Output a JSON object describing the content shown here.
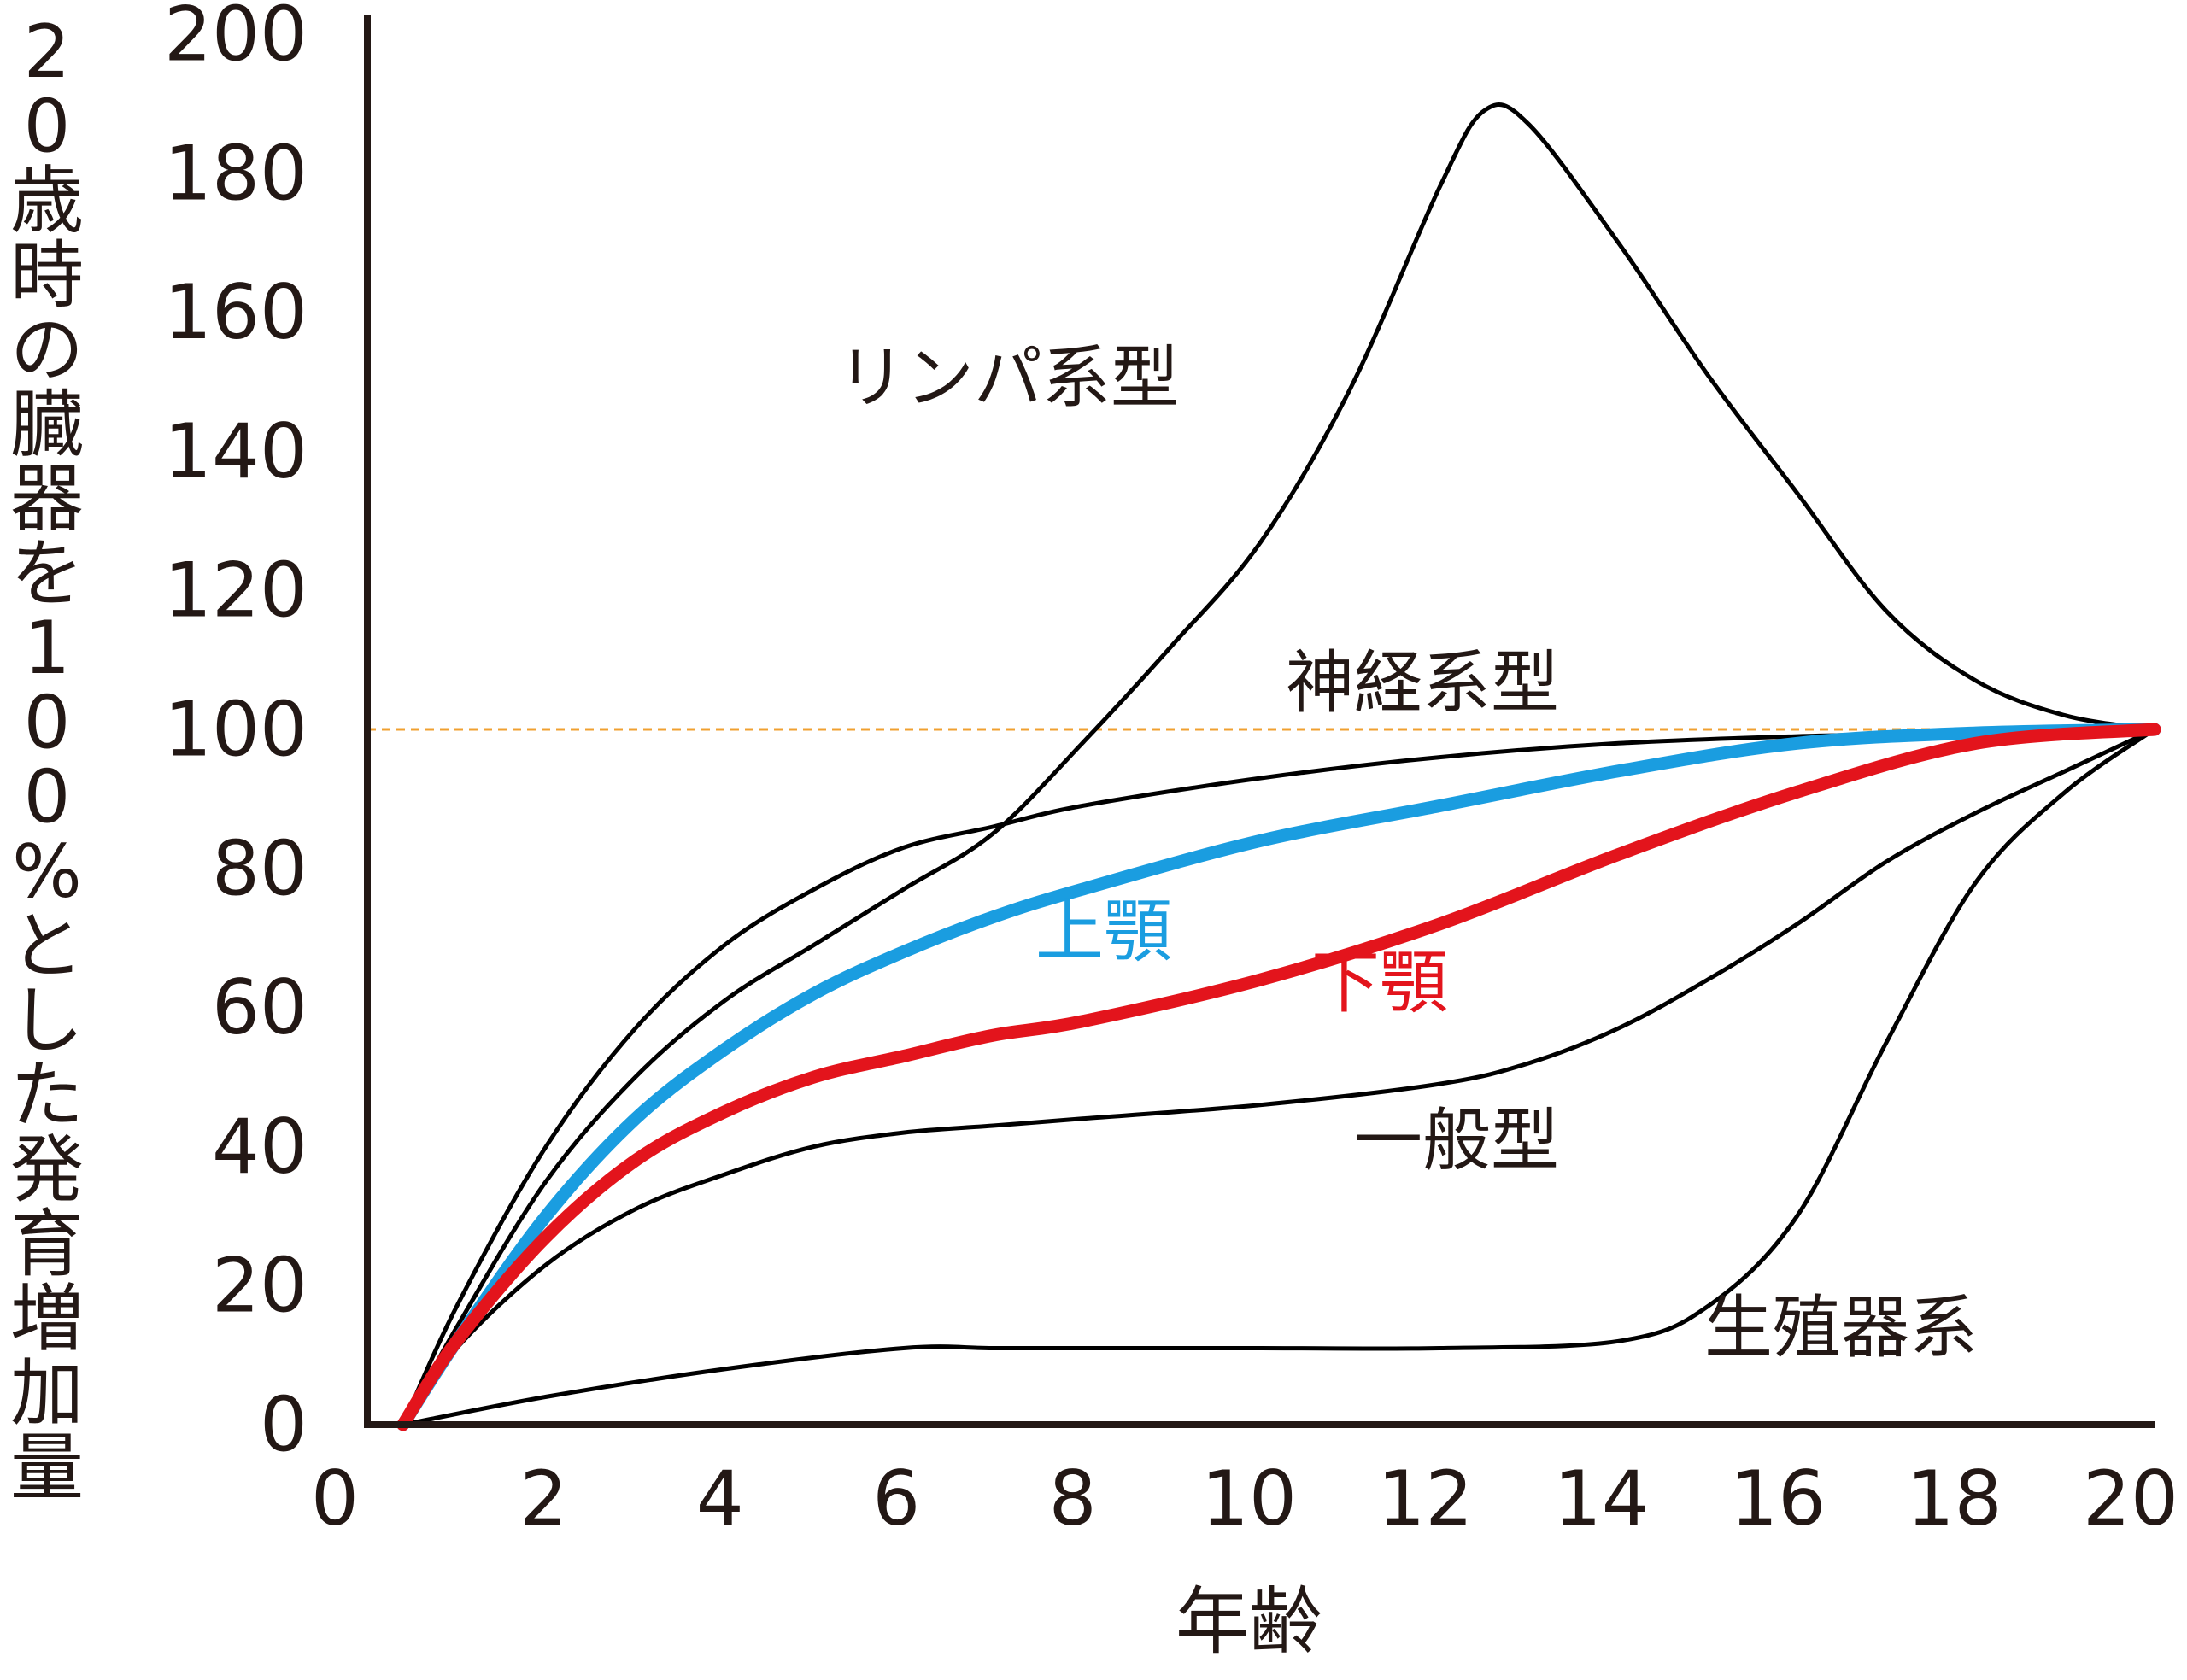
{
  "chart_data": {
    "type": "line",
    "title": "",
    "xlabel": "年齢",
    "ylabel": "20歳時の臓器を100%とした発育増加量",
    "ylabel_chars": [
      "2",
      "0",
      "歳",
      "時",
      "の",
      "臓",
      "器",
      "を",
      "1",
      "0",
      "0",
      "%",
      "と",
      "し",
      "た",
      "発",
      "育",
      "増",
      "加",
      "量"
    ],
    "xlim": [
      0,
      20
    ],
    "ylim": [
      0,
      200
    ],
    "x_ticks": [
      "0",
      "2",
      "4",
      "6",
      "8",
      "10",
      "12",
      "14",
      "16",
      "18",
      "20"
    ],
    "y_ticks": [
      "0",
      "20",
      "40",
      "60",
      "80",
      "100",
      "120",
      "140",
      "160",
      "180",
      "200"
    ],
    "reference_line": {
      "y": 100,
      "color": "#f0a030",
      "style": "dashed"
    },
    "series": [
      {
        "name": "リンパ系型",
        "color": "#000000",
        "x": [
          0.4,
          1,
          2,
          3,
          4,
          5,
          6,
          7,
          8,
          9,
          10,
          11,
          12,
          12.5,
          13,
          14,
          15,
          16,
          17,
          18,
          19,
          20
        ],
        "values": [
          0,
          14,
          35,
          50,
          61,
          69,
          77,
          85,
          98,
          112,
          127,
          149,
          178,
          189,
          187,
          170,
          151,
          134,
          117,
          107,
          102,
          100
        ]
      },
      {
        "name": "神経系型",
        "color": "#000000",
        "x": [
          0.4,
          1,
          2,
          3,
          4,
          5,
          6,
          7,
          8,
          10,
          12,
          14,
          16,
          18,
          20
        ],
        "values": [
          0,
          17,
          40,
          57,
          69,
          77,
          83,
          86,
          89,
          93,
          96,
          98,
          99,
          99.5,
          100
        ]
      },
      {
        "name": "上顎",
        "color": "#1a9de0",
        "x": [
          0.4,
          1,
          2,
          3,
          4,
          5,
          6,
          7,
          8,
          10,
          12,
          14,
          16,
          18,
          20
        ],
        "values": [
          0,
          12,
          30,
          44,
          54,
          62,
          68,
          73,
          77,
          84,
          89,
          94,
          98,
          99.5,
          100
        ]
      },
      {
        "name": "下顎",
        "color": "#e3141c",
        "x": [
          0.4,
          1,
          2,
          3,
          4,
          5,
          6,
          7,
          8,
          10,
          12,
          14,
          16,
          18,
          20
        ],
        "values": [
          0,
          12,
          27,
          38,
          45,
          50,
          53,
          56,
          58,
          64,
          72,
          82,
          91,
          98,
          100
        ]
      },
      {
        "name": "一般型",
        "color": "#000000",
        "x": [
          0.4,
          1,
          2,
          3,
          4,
          5,
          6,
          7,
          8,
          10,
          12,
          13,
          14,
          15,
          16,
          17,
          18,
          19,
          20
        ],
        "values": [
          0,
          11,
          23,
          31,
          36,
          40,
          42,
          43,
          44,
          46,
          49,
          52,
          57,
          64,
          72,
          81,
          88,
          94,
          100
        ]
      },
      {
        "name": "生殖器系",
        "color": "#000000",
        "x": [
          0.4,
          2,
          4,
          6,
          7,
          8,
          10,
          12,
          14,
          15,
          16,
          17,
          18,
          19,
          20
        ],
        "values": [
          0,
          4,
          8,
          11,
          11,
          11,
          11,
          11,
          12,
          17,
          30,
          55,
          78,
          91,
          100
        ]
      }
    ]
  }
}
